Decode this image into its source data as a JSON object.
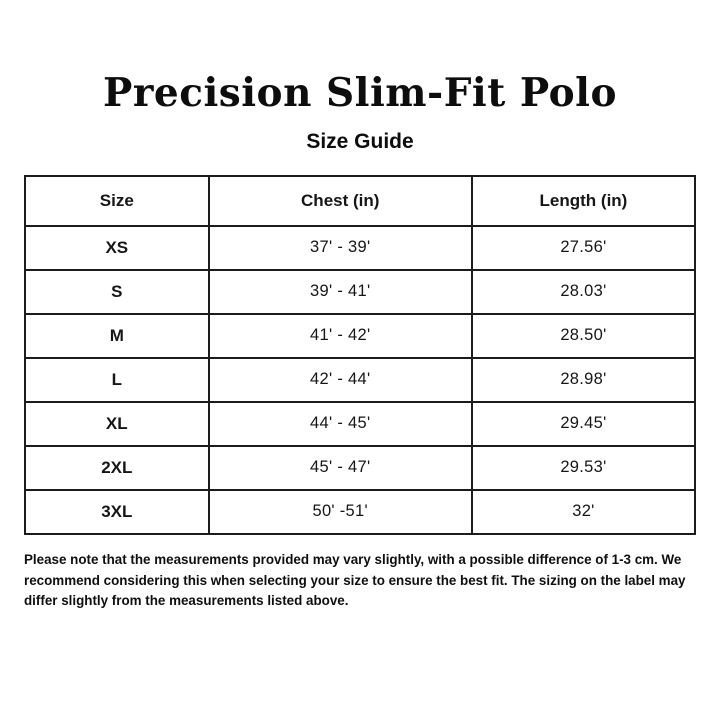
{
  "page": {
    "title": "Precision Slim-Fit Polo",
    "subtitle": "Size Guide"
  },
  "size_table": {
    "headers": [
      "Size",
      "Chest (in)",
      "Length (in)"
    ],
    "rows": [
      {
        "size": "XS",
        "chest": "37' - 39'",
        "length": "27.56'"
      },
      {
        "size": "S",
        "chest": "39' - 41'",
        "length": "28.03'"
      },
      {
        "size": "M",
        "chest": "41' - 42'",
        "length": "28.50'"
      },
      {
        "size": "L",
        "chest": "42' - 44'",
        "length": "28.98'"
      },
      {
        "size": "XL",
        "chest": "44' - 45'",
        "length": "29.45'"
      },
      {
        "size": "2XL",
        "chest": "45' - 47'",
        "length": "29.53'"
      },
      {
        "size": "3XL",
        "chest": "50' -51'",
        "length": "32'"
      }
    ]
  },
  "note": "Please note that the measurements provided may vary slightly, with a possible difference of 1-3 cm. We recommend considering this when selecting your size to ensure the best fit. The sizing on the label may differ slightly from the measurements listed above.",
  "colors": {
    "background": "#ffffff",
    "text": "#111111",
    "border": "#1c1c1c"
  }
}
